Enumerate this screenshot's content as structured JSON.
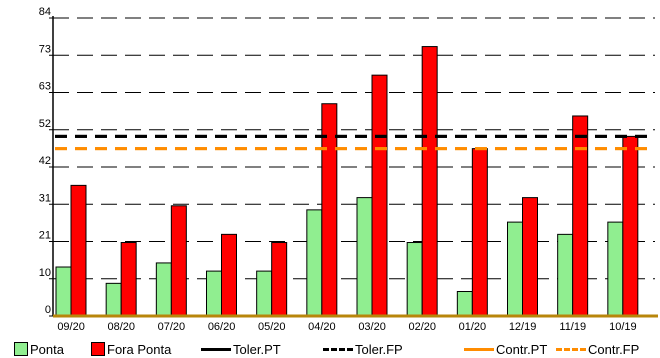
{
  "chart_data": {
    "type": "bar",
    "categories": [
      "09/20",
      "08/20",
      "07/20",
      "06/20",
      "05/20",
      "04/20",
      "03/20",
      "02/20",
      "01/20",
      "12/19",
      "11/19",
      "10/19"
    ],
    "series": [
      {
        "name": "Ponta",
        "values": [
          12,
          8,
          13,
          11,
          11,
          26,
          29,
          18,
          6,
          23,
          20,
          23
        ],
        "color": "#90ee90"
      },
      {
        "name": "Fora Ponta",
        "values": [
          32,
          18,
          27,
          20,
          18,
          52,
          59,
          66,
          41,
          29,
          49,
          44
        ],
        "color": "#ff0000"
      }
    ],
    "reference_lines": [
      {
        "name": "Toler.PT",
        "value": 44,
        "color": "#000000",
        "style": "solid"
      },
      {
        "name": "Toler.FP",
        "value": 44,
        "color": "#000000",
        "style": "dashed"
      },
      {
        "name": "Contr.PT",
        "value": 41,
        "color": "#ff8c00",
        "style": "solid"
      },
      {
        "name": "Contr.FP",
        "value": 41,
        "color": "#ff8c00",
        "style": "dashed"
      }
    ],
    "yticks": [
      "0",
      "10",
      "21",
      "31",
      "42",
      "52",
      "63",
      "73",
      "84"
    ],
    "ylim": [
      0,
      73
    ],
    "grid": true,
    "legend_position": "bottom"
  },
  "legend": [
    {
      "label": "Ponta",
      "kind": "box",
      "color": "#90ee90"
    },
    {
      "label": "Fora Ponta",
      "kind": "box",
      "color": "#ff0000"
    },
    {
      "label": "Toler.PT",
      "kind": "line",
      "color": "#000000",
      "dashed": false
    },
    {
      "label": "Toler.FP",
      "kind": "line",
      "color": "#000000",
      "dashed": true
    },
    {
      "label": "Contr.PT",
      "kind": "line",
      "color": "#ff8c00",
      "dashed": false
    },
    {
      "label": "Contr.FP",
      "kind": "line",
      "color": "#ff8c00",
      "dashed": true
    }
  ]
}
